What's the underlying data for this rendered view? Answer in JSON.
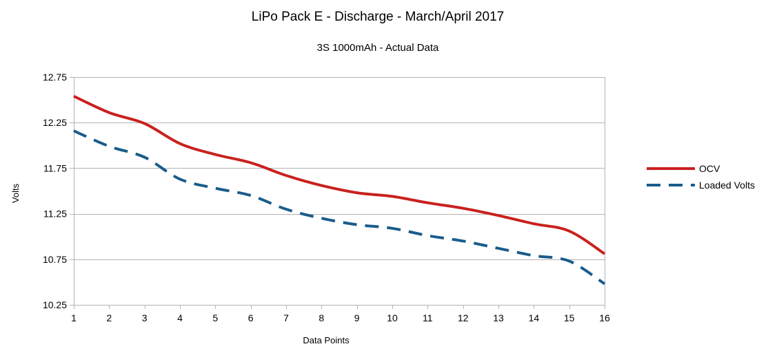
{
  "chart_data": {
    "type": "line",
    "title": "LiPo Pack E - Discharge - March/April 2017",
    "subtitle": "3S 1000mAh - Actual Data",
    "xlabel": "Data Points",
    "ylabel": "Volts",
    "ylim": [
      10.25,
      12.75
    ],
    "yticks": [
      "12.75",
      "12.25",
      "11.75",
      "11.25",
      "10.75",
      "10.25"
    ],
    "ytick_values": [
      12.75,
      12.25,
      11.75,
      11.25,
      10.75,
      10.25
    ],
    "x": [
      1,
      2,
      3,
      4,
      5,
      6,
      7,
      8,
      9,
      10,
      11,
      12,
      13,
      14,
      15,
      16
    ],
    "xticks": [
      "1",
      "2",
      "3",
      "4",
      "5",
      "6",
      "7",
      "8",
      "9",
      "10",
      "11",
      "12",
      "13",
      "14",
      "15",
      "16"
    ],
    "grid": true,
    "legend_position": "right",
    "series": [
      {
        "name": "OCV",
        "color": "#c9211e",
        "style": "solid",
        "values": [
          12.54,
          12.36,
          12.24,
          12.02,
          11.9,
          11.81,
          11.67,
          11.56,
          11.48,
          11.44,
          11.37,
          11.31,
          11.23,
          11.14,
          11.06,
          10.81
        ]
      },
      {
        "name": "Loaded Volts",
        "color": "#1a5c8c",
        "style": "dashed",
        "values": [
          12.16,
          11.99,
          11.87,
          11.63,
          11.53,
          11.45,
          11.3,
          11.2,
          11.13,
          11.09,
          11.01,
          10.95,
          10.87,
          10.79,
          10.73,
          10.48
        ]
      }
    ]
  }
}
